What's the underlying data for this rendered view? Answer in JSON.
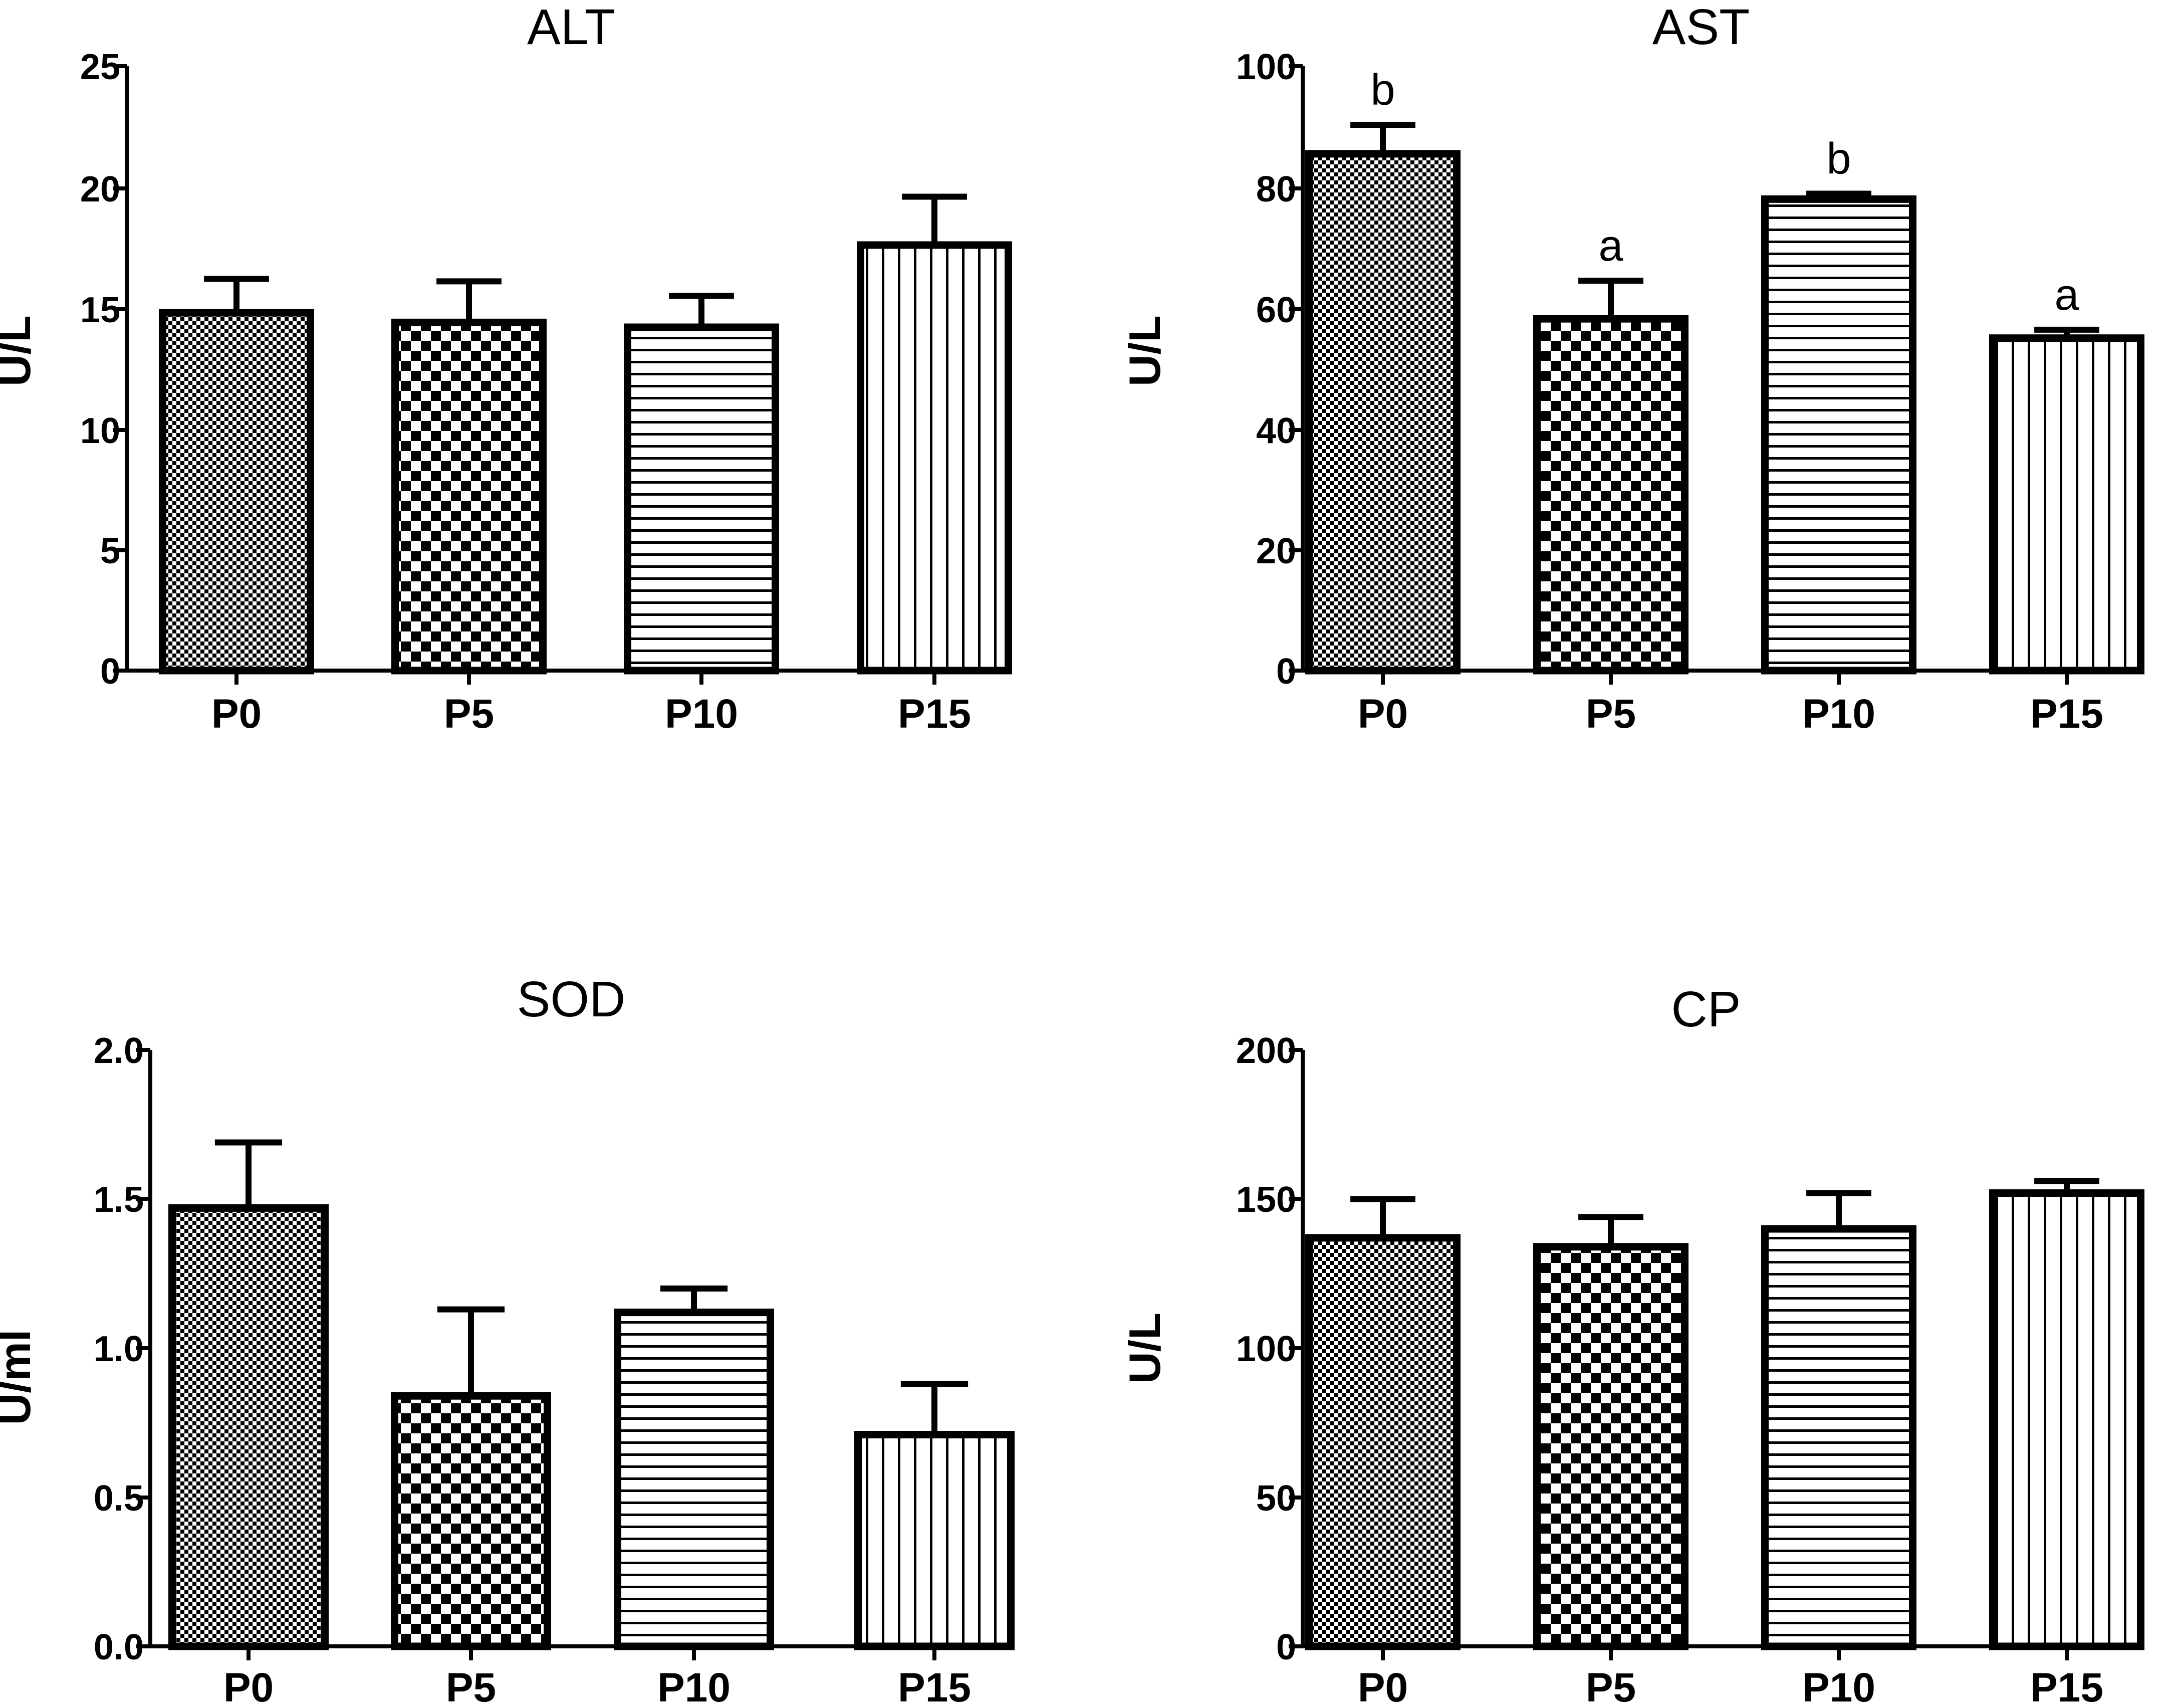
{
  "chart_data": [
    {
      "type": "bar",
      "title": "ALT",
      "ylabel": "U/L",
      "xlabel": "",
      "categories": [
        "P0",
        "P5",
        "P10",
        "P15"
      ],
      "values": [
        14.8,
        14.4,
        14.2,
        17.6
      ],
      "errors": [
        1.4,
        1.7,
        1.3,
        2.0
      ],
      "annotations": [
        "",
        "",
        "",
        ""
      ],
      "ylim": [
        0,
        25
      ],
      "yticks": [
        0,
        5,
        10,
        15,
        20,
        25
      ],
      "ytick_labels": [
        "0",
        "5",
        "10",
        "15",
        "20",
        "25"
      ],
      "grid": false
    },
    {
      "type": "bar",
      "title": "AST",
      "ylabel": "U/L",
      "xlabel": "",
      "categories": [
        "P0",
        "P5",
        "P10",
        "P15"
      ],
      "values": [
        85.5,
        58.2,
        78.0,
        55.0
      ],
      "errors": [
        4.8,
        6.3,
        0.9,
        1.4
      ],
      "annotations": [
        "b",
        "a",
        "b",
        "a"
      ],
      "ylim": [
        0,
        100
      ],
      "yticks": [
        0,
        20,
        40,
        60,
        80,
        100
      ],
      "ytick_labels": [
        "0",
        "20",
        "40",
        "60",
        "80",
        "100"
      ],
      "grid": false
    },
    {
      "type": "bar",
      "title": "SOD",
      "ylabel": "U/ml",
      "xlabel": "",
      "categories": [
        "P0",
        "P5",
        "P10",
        "P15"
      ],
      "values": [
        1.47,
        0.84,
        1.12,
        0.71
      ],
      "errors": [
        0.22,
        0.29,
        0.08,
        0.17
      ],
      "annotations": [
        "",
        "",
        "",
        ""
      ],
      "ylim": [
        0,
        2.0
      ],
      "yticks": [
        0,
        0.5,
        1.0,
        1.5,
        2.0
      ],
      "ytick_labels": [
        "0.0",
        "0.5",
        "1.0",
        "1.5",
        "2.0"
      ],
      "grid": false
    },
    {
      "type": "bar",
      "title": "CP",
      "ylabel": "U/L",
      "xlabel": "",
      "categories": [
        "P0",
        "P5",
        "P10",
        "P15"
      ],
      "values": [
        137,
        134,
        140,
        152
      ],
      "errors": [
        13,
        10,
        12,
        4
      ],
      "annotations": [
        "",
        "",
        "",
        ""
      ],
      "ylim": [
        0,
        200
      ],
      "yticks": [
        0,
        50,
        100,
        150,
        200
      ],
      "ytick_labels": [
        "0",
        "50",
        "100",
        "150",
        "200"
      ],
      "grid": false
    }
  ]
}
